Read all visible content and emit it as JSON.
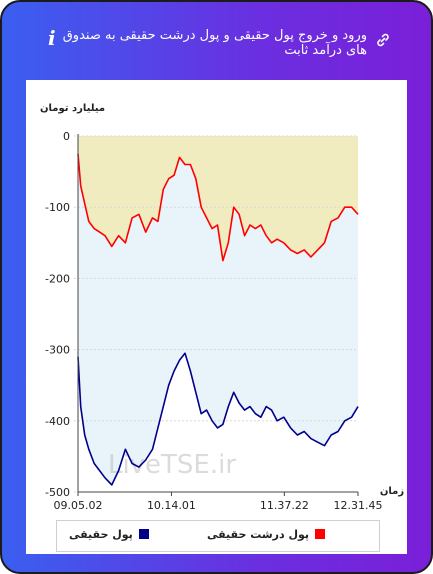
{
  "header": {
    "title": "ورود و خروج پول حقیقی و پول درشت حقیقی به صندوق های درآمد ثابت",
    "info_glyph": "i",
    "icons": [
      "info-icon",
      "link-icon"
    ]
  },
  "chart_data": {
    "type": "line",
    "ylabel": "میلیارد تومان",
    "xlabel": "زمان",
    "ylim": [
      -500,
      0
    ],
    "yticks": [
      "0",
      "-100",
      "-200",
      "-300",
      "-400",
      "-500"
    ],
    "xticks": [
      "09.05.02",
      "10.14.01",
      "11.37.22",
      "12.31.45"
    ],
    "xrange": [
      "09.05.02",
      "12.31.45"
    ],
    "watermark": "LiveTSE.ir",
    "series": [
      {
        "name": "پول درشت حقیقی",
        "color": "#ff0000",
        "fill": "#f0ecc0",
        "x": [
          "09.05.02",
          "09.07.00",
          "09.10.00",
          "09.13.00",
          "09.17.00",
          "09.21.00",
          "09.25.00",
          "09.30.00",
          "09.35.00",
          "09.40.00",
          "09.45.00",
          "09.50.00",
          "09.55.00",
          "10.00.00",
          "10.04.00",
          "10.08.00",
          "10.12.00",
          "10.16.00",
          "10.20.00",
          "10.24.00",
          "10.28.00",
          "10.32.00",
          "10.36.00",
          "10.40.00",
          "10.44.00",
          "10.48.00",
          "10.52.00",
          "10.56.00",
          "11.00.00",
          "11.04.00",
          "11.08.00",
          "11.12.00",
          "11.16.00",
          "11.20.00",
          "11.24.00",
          "11.28.00",
          "11.32.00",
          "11.37.00",
          "11.42.00",
          "11.47.00",
          "11.52.00",
          "11.57.00",
          "12.02.00",
          "12.07.00",
          "12.12.00",
          "12.17.00",
          "12.22.00",
          "12.27.00",
          "12.31.45"
        ],
        "values": [
          -25,
          -70,
          -95,
          -120,
          -130,
          -135,
          -140,
          -155,
          -140,
          -150,
          -115,
          -110,
          -135,
          -115,
          -120,
          -75,
          -60,
          -55,
          -30,
          -40,
          -40,
          -60,
          -100,
          -115,
          -130,
          -125,
          -175,
          -150,
          -100,
          -110,
          -140,
          -125,
          -130,
          -125,
          -140,
          -150,
          -145,
          -150,
          -160,
          -165,
          -160,
          -170,
          -160,
          -150,
          -120,
          -115,
          -100,
          -100,
          -110
        ]
      },
      {
        "name": "پول حقیقی",
        "color": "#00008b",
        "fill": "#e8f3fa",
        "x": [
          "09.05.02",
          "09.07.00",
          "09.10.00",
          "09.13.00",
          "09.17.00",
          "09.21.00",
          "09.25.00",
          "09.30.00",
          "09.35.00",
          "09.40.00",
          "09.45.00",
          "09.50.00",
          "09.55.00",
          "10.00.00",
          "10.04.00",
          "10.08.00",
          "10.12.00",
          "10.16.00",
          "10.20.00",
          "10.24.00",
          "10.28.00",
          "10.32.00",
          "10.36.00",
          "10.40.00",
          "10.44.00",
          "10.48.00",
          "10.52.00",
          "10.56.00",
          "11.00.00",
          "11.04.00",
          "11.08.00",
          "11.12.00",
          "11.16.00",
          "11.20.00",
          "11.24.00",
          "11.28.00",
          "11.32.00",
          "11.37.00",
          "11.42.00",
          "11.47.00",
          "11.52.00",
          "11.57.00",
          "12.02.00",
          "12.07.00",
          "12.12.00",
          "12.17.00",
          "12.22.00",
          "12.27.00",
          "12.31.45"
        ],
        "values": [
          -310,
          -380,
          -420,
          -440,
          -460,
          -470,
          -480,
          -490,
          -470,
          -440,
          -460,
          -465,
          -455,
          -440,
          -410,
          -380,
          -350,
          -330,
          -315,
          -305,
          -330,
          -360,
          -390,
          -385,
          -400,
          -410,
          -405,
          -380,
          -360,
          -375,
          -385,
          -380,
          -390,
          -395,
          -380,
          -385,
          -400,
          -395,
          -410,
          -420,
          -415,
          -425,
          -430,
          -435,
          -420,
          -415,
          -400,
          -395,
          -380
        ]
      }
    ]
  },
  "legend": [
    {
      "label": "پول درشت حقیقی",
      "color": "#ff0000"
    },
    {
      "label": "پول حقیقی",
      "color": "#00008b"
    }
  ]
}
